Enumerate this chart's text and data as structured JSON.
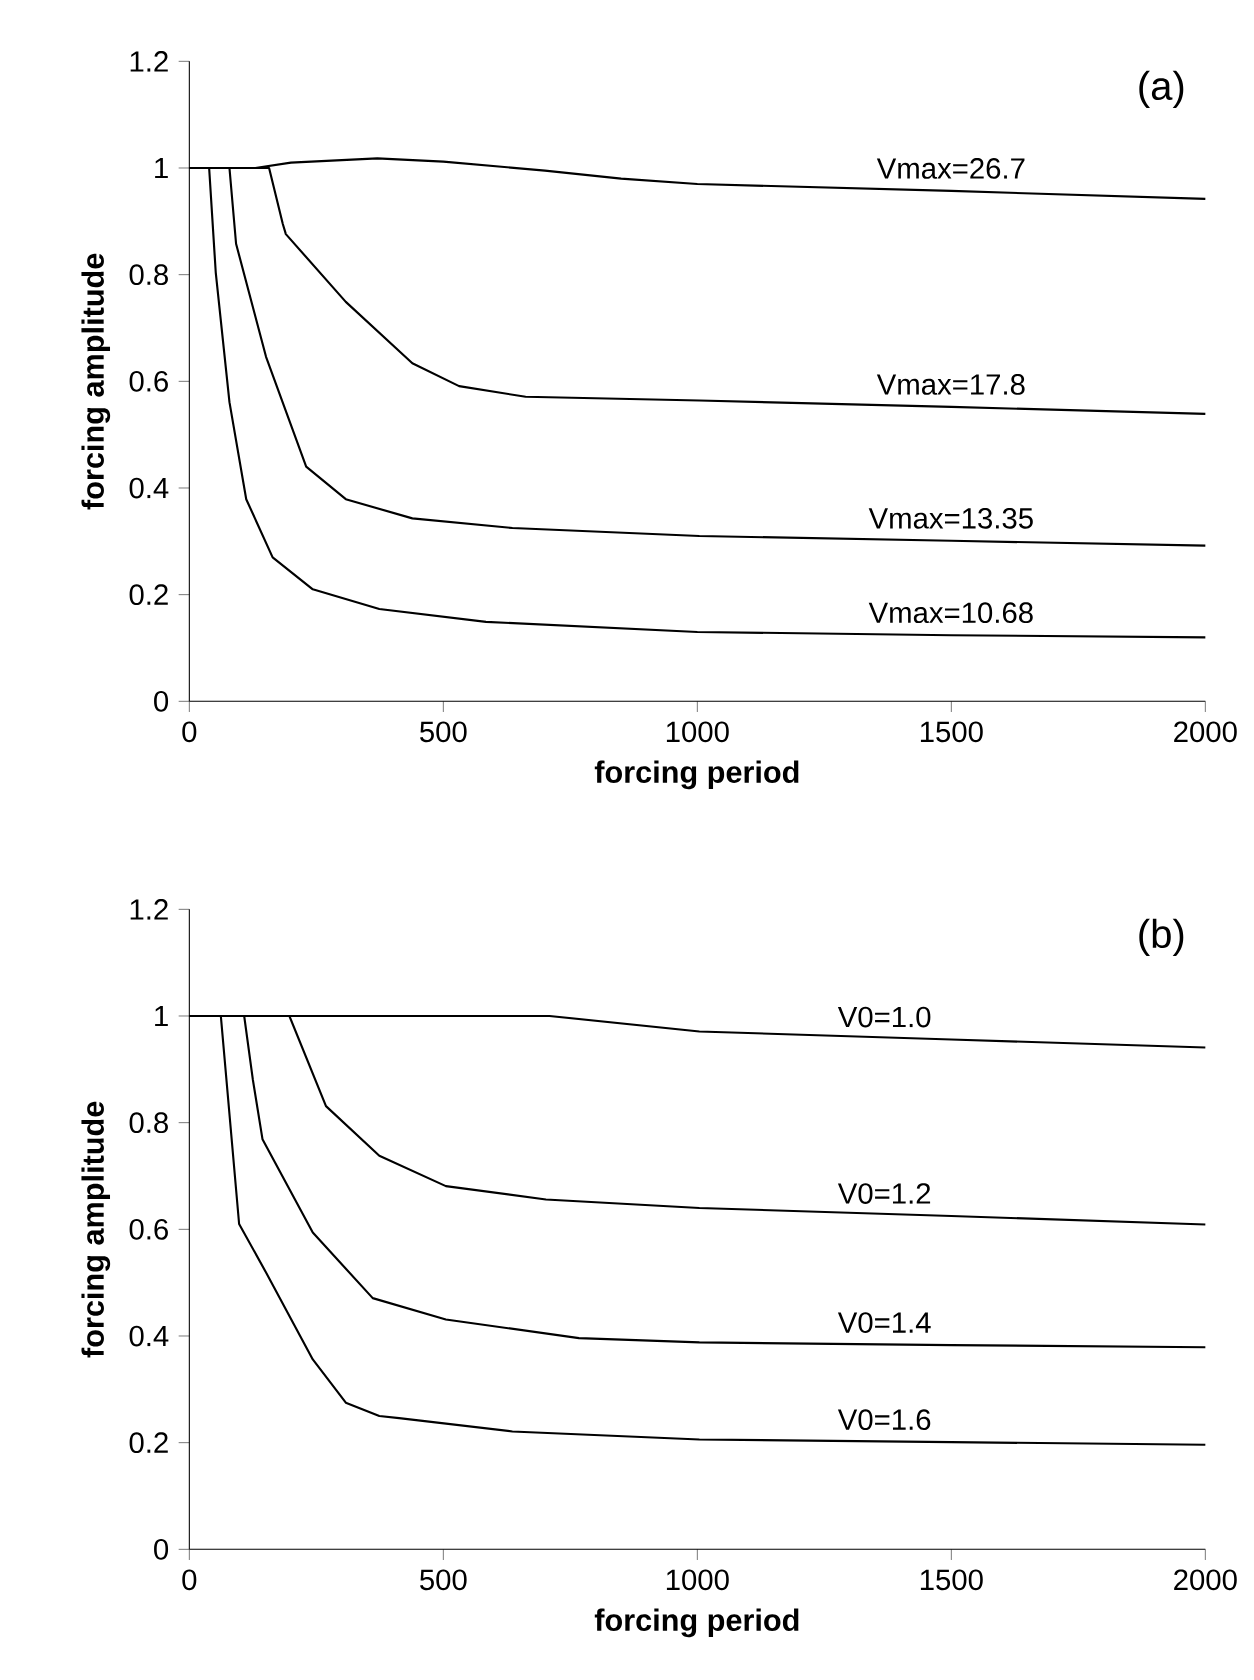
{
  "chart_data": [
    {
      "type": "line",
      "xlabel": "forcing period",
      "ylabel": "forcing amplitude",
      "annotations": [
        "(a)"
      ],
      "xlim": [
        0,
        2000
      ],
      "ylim": [
        0,
        1.2
      ],
      "xticks": [
        0,
        500,
        1000,
        1500,
        2000
      ],
      "yticks": [
        0,
        0.2,
        0.4,
        0.6,
        0.8,
        1,
        1.2
      ],
      "series": [
        {
          "name": "Vmax=26.7",
          "color": "#000000",
          "x": [
            0,
            130,
            200,
            370,
            500,
            700,
            850,
            1000,
            1500,
            2000
          ],
          "values": [
            1,
            1,
            1.01,
            1.018,
            1.012,
            0.995,
            0.98,
            0.97,
            0.957,
            0.942
          ]
        },
        {
          "name": "Vmax=17.8",
          "color": "#000000",
          "x": [
            0,
            157,
            184,
            190,
            308,
            439,
            531,
            662,
            1004,
            1500,
            2000
          ],
          "values": [
            1,
            1,
            0.895,
            0.876,
            0.749,
            0.634,
            0.591,
            0.571,
            0.564,
            0.552,
            0.539
          ]
        },
        {
          "name": "Vmax=13.35",
          "color": "#000000",
          "x": [
            0,
            79,
            92,
            151,
            230,
            308,
            439,
            636,
            1004,
            1500,
            2000
          ],
          "values": [
            1,
            1,
            0.858,
            0.646,
            0.44,
            0.379,
            0.343,
            0.325,
            0.31,
            0.301,
            0.292
          ]
        },
        {
          "name": "Vmax=10.68",
          "color": "#000000",
          "x": [
            0,
            39,
            52,
            79,
            112,
            164,
            243,
            374,
            584,
            1000,
            1500,
            2000
          ],
          "values": [
            1,
            1,
            0.804,
            0.561,
            0.379,
            0.27,
            0.21,
            0.173,
            0.149,
            0.13,
            0.124,
            0.12
          ]
        }
      ]
    },
    {
      "type": "line",
      "xlabel": "forcing period",
      "ylabel": "forcing amplitude",
      "annotations": [
        "(b)"
      ],
      "xlim": [
        0,
        2000
      ],
      "ylim": [
        0,
        1.2
      ],
      "xticks": [
        0,
        500,
        1000,
        1500,
        2000
      ],
      "yticks": [
        0,
        0.2,
        0.4,
        0.6,
        0.8,
        1,
        1.2
      ],
      "series": [
        {
          "name": "V0=1.0",
          "color": "#000000",
          "x": [
            0,
            709,
            1004,
            1500,
            2000
          ],
          "values": [
            1,
            1,
            0.971,
            0.956,
            0.941
          ]
        },
        {
          "name": "V0=1.2",
          "color": "#000000",
          "x": [
            0,
            197,
            269,
            374,
            505,
            702,
            1004,
            1500,
            2000
          ],
          "values": [
            1,
            1,
            0.831,
            0.738,
            0.681,
            0.656,
            0.64,
            0.625,
            0.609
          ]
        },
        {
          "name": "V0=1.4",
          "color": "#000000",
          "x": [
            0,
            108,
            125,
            144,
            243,
            361,
            505,
            767,
            1004,
            1500,
            2000
          ],
          "values": [
            1,
            1,
            0.881,
            0.769,
            0.594,
            0.471,
            0.431,
            0.396,
            0.388,
            0.383,
            0.379
          ]
        },
        {
          "name": "V0=1.6",
          "color": "#000000",
          "x": [
            0,
            62,
            98,
            151,
            243,
            308,
            374,
            413,
            636,
            1004,
            1500,
            2000
          ],
          "values": [
            1,
            1,
            0.61,
            0.519,
            0.356,
            0.275,
            0.25,
            0.246,
            0.221,
            0.206,
            0.201,
            0.196
          ]
        }
      ]
    }
  ]
}
